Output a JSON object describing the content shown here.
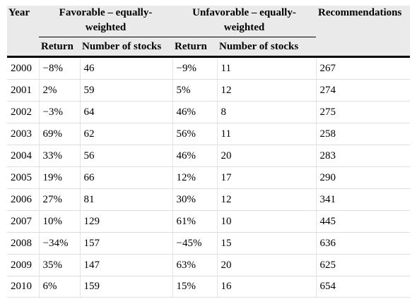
{
  "table": {
    "headers": {
      "year": "Year",
      "favorable": "Favorable – equally-weighted",
      "unfavorable": "Unfavorable – equally-weighted",
      "recommendations": "Recommendations",
      "fav_return": "Return",
      "fav_number": "Number of stocks",
      "unfav_return": "Return",
      "unfav_number": "Number of stocks"
    },
    "rows": [
      {
        "year": "2000",
        "fav_return": "−8%",
        "fav_number": "46",
        "unfav_return": "−9%",
        "unfav_number": "11",
        "recommendations": "267"
      },
      {
        "year": "2001",
        "fav_return": "2%",
        "fav_number": "59",
        "unfav_return": "5%",
        "unfav_number": "12",
        "recommendations": "274"
      },
      {
        "year": "2002",
        "fav_return": "−3%",
        "fav_number": "64",
        "unfav_return": "46%",
        "unfav_number": "8",
        "recommendations": "275"
      },
      {
        "year": "2003",
        "fav_return": "69%",
        "fav_number": "62",
        "unfav_return": "56%",
        "unfav_number": "11",
        "recommendations": "258"
      },
      {
        "year": "2004",
        "fav_return": "33%",
        "fav_number": "56",
        "unfav_return": "46%",
        "unfav_number": "20",
        "recommendations": "283"
      },
      {
        "year": "2005",
        "fav_return": "19%",
        "fav_number": "66",
        "unfav_return": "12%",
        "unfav_number": "17",
        "recommendations": "290"
      },
      {
        "year": "2006",
        "fav_return": "27%",
        "fav_number": "81",
        "unfav_return": "30%",
        "unfav_number": "12",
        "recommendations": "341"
      },
      {
        "year": "2007",
        "fav_return": "10%",
        "fav_number": "129",
        "unfav_return": "61%",
        "unfav_number": "10",
        "recommendations": "445"
      },
      {
        "year": "2008",
        "fav_return": "−34%",
        "fav_number": "157",
        "unfav_return": "−45%",
        "unfav_number": "15",
        "recommendations": "636"
      },
      {
        "year": "2009",
        "fav_return": "35%",
        "fav_number": "147",
        "unfav_return": "63%",
        "unfav_number": "20",
        "recommendations": "625"
      },
      {
        "year": "2010",
        "fav_return": "6%",
        "fav_number": "159",
        "unfav_return": "15%",
        "unfav_number": "16",
        "recommendations": "654"
      }
    ]
  }
}
